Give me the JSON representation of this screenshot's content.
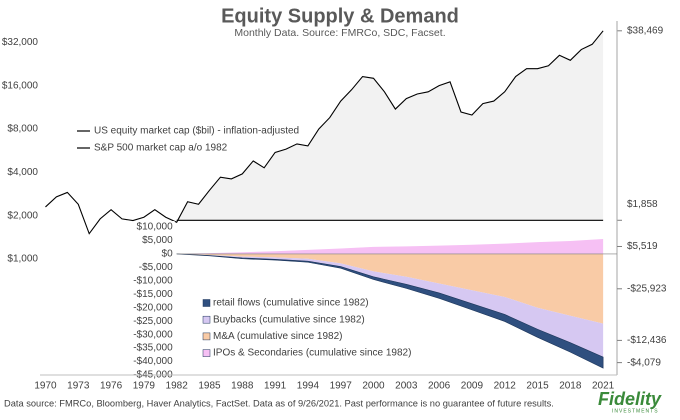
{
  "chart_data": [
    {
      "type": "line",
      "title": "Equity Supply & Demand",
      "subtitle": "Monthly Data. Source: FMRCo, SDC, Facset.",
      "log_y": true,
      "ylim": [
        1000,
        45000
      ],
      "xlim": [
        1969.5,
        2023
      ],
      "yticks": [
        {
          "value": 1000,
          "label": "$1,000"
        },
        {
          "value": 2000,
          "label": "$2,000"
        },
        {
          "value": 4000,
          "label": "$4,000"
        },
        {
          "value": 8000,
          "label": "$8,000"
        },
        {
          "value": 16000,
          "label": "$16,000"
        },
        {
          "value": 32000,
          "label": "$32,000"
        }
      ],
      "band_color": "#f2f2f2",
      "legend": "left",
      "series": [
        {
          "name": "US equity market cap ($bil) - inflation-adjusted",
          "color": "#000000",
          "x": [
            1970,
            1971,
            1972,
            1973,
            1974,
            1975,
            1976,
            1977,
            1978,
            1979,
            1980,
            1981,
            1982,
            1983,
            1984,
            1985,
            1986,
            1987,
            1988,
            1989,
            1990,
            1991,
            1992,
            1993,
            1994,
            1995,
            1996,
            1997,
            1998,
            1999,
            2000,
            2001,
            2002,
            2003,
            2004,
            2005,
            2006,
            2007,
            2008,
            2009,
            2010,
            2011,
            2012,
            2013,
            2014,
            2015,
            2016,
            2017,
            2018,
            2019,
            2020,
            2021
          ],
          "values": [
            2300,
            2700,
            2900,
            2400,
            1500,
            1900,
            2200,
            1900,
            1850,
            1950,
            2200,
            1950,
            1800,
            2500,
            2400,
            3000,
            3700,
            3600,
            3900,
            4800,
            4300,
            5500,
            5800,
            6300,
            6100,
            8000,
            9600,
            12500,
            15000,
            18500,
            18000,
            14500,
            11000,
            13000,
            14000,
            14500,
            16000,
            17000,
            10500,
            10000,
            12000,
            12500,
            14500,
            18500,
            21000,
            21000,
            22000,
            26000,
            24000,
            28500,
            31000,
            38469
          ],
          "end_label": "$38,469"
        },
        {
          "name": "S&P 500 market cap a/o 1982",
          "color": "#000000",
          "x": [
            1982,
            2021
          ],
          "values": [
            1858,
            1858
          ],
          "end_label": "$1,858"
        }
      ]
    },
    {
      "type": "stacked_area",
      "xlim": [
        1969.5,
        2023
      ],
      "ylim": [
        -45000,
        10000
      ],
      "yticks": [
        {
          "value": 10000,
          "label": "$10,000"
        },
        {
          "value": 5000,
          "label": "$5,000"
        },
        {
          "value": 0,
          "label": "$0"
        },
        {
          "value": -5000,
          "label": "-$5,000"
        },
        {
          "value": -10000,
          "label": "-$10,000"
        },
        {
          "value": -15000,
          "label": "-$15,000"
        },
        {
          "value": -20000,
          "label": "-$20,000"
        },
        {
          "value": -25000,
          "label": "-$25,000"
        },
        {
          "value": -30000,
          "label": "-$30,000"
        },
        {
          "value": -35000,
          "label": "-$35,000"
        },
        {
          "value": -40000,
          "label": "-$40,000"
        },
        {
          "value": -45000,
          "label": "-$45,000"
        }
      ],
      "xticks": [
        1970,
        1973,
        1976,
        1979,
        1982,
        1985,
        1988,
        1991,
        1994,
        1997,
        2000,
        2003,
        2006,
        2009,
        2012,
        2015,
        2018,
        2021
      ],
      "x": [
        1982,
        1985,
        1988,
        1991,
        1994,
        1997,
        2000,
        2003,
        2006,
        2009,
        2012,
        2015,
        2018,
        2021
      ],
      "series": [
        {
          "name": "retail flows (cumulative since 1982)",
          "color": "#2f4f7f",
          "values": [
            0,
            -100,
            -300,
            -300,
            -400,
            -600,
            -1000,
            -1500,
            -2000,
            -2300,
            -2600,
            -3000,
            -3500,
            -4079
          ],
          "end_label": "-$4,079"
        },
        {
          "name": "Buybacks (cumulative since 1982)",
          "color": "#d6c8f2",
          "values": [
            0,
            -200,
            -500,
            -700,
            -900,
            -1200,
            -2000,
            -2800,
            -3500,
            -5000,
            -6500,
            -8000,
            -10000,
            -12436
          ],
          "end_label": "-$12,436"
        },
        {
          "name": "M&A (cumulative since 1982)",
          "color": "#f9cba6",
          "values": [
            0,
            -400,
            -1000,
            -1300,
            -1800,
            -3500,
            -6500,
            -8500,
            -11000,
            -13500,
            -16000,
            -20000,
            -23000,
            -25923
          ],
          "end_label": "-$25,923"
        },
        {
          "name": "IPOs & Secondaries (cumulative since 1982)",
          "color": "#f6c0f4",
          "values": [
            0,
            300,
            600,
            1000,
            1500,
            2000,
            2600,
            2800,
            3100,
            3400,
            3800,
            4400,
            4800,
            5519
          ],
          "end_label": "$5,519"
        }
      ]
    }
  ],
  "footnote": "Data source: FMRCo, Bloomberg, Haver Analytics, FactSet. Data as of 9/26/2021. Past performance is no guarantee of future results.",
  "logo": {
    "brand": "Fidelity",
    "sub": "INVESTMENTS"
  }
}
